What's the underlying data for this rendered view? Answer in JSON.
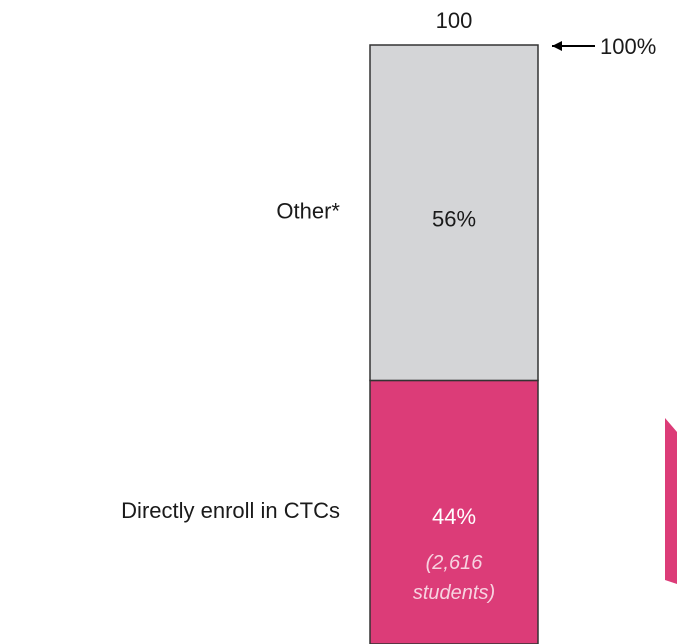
{
  "chart_data": {
    "type": "stacked_bar",
    "total": 100,
    "annotation": "100%",
    "series": [
      {
        "name": "Directly enroll in CTCs",
        "color": "#dc3c78",
        "values": [
          44
        ],
        "value_labels": [
          "44%"
        ],
        "note": "(2,616 students)"
      },
      {
        "name": "Other*",
        "color": "#d4d5d7",
        "values": [
          56
        ],
        "value_labels": [
          "56%"
        ]
      }
    ]
  }
}
